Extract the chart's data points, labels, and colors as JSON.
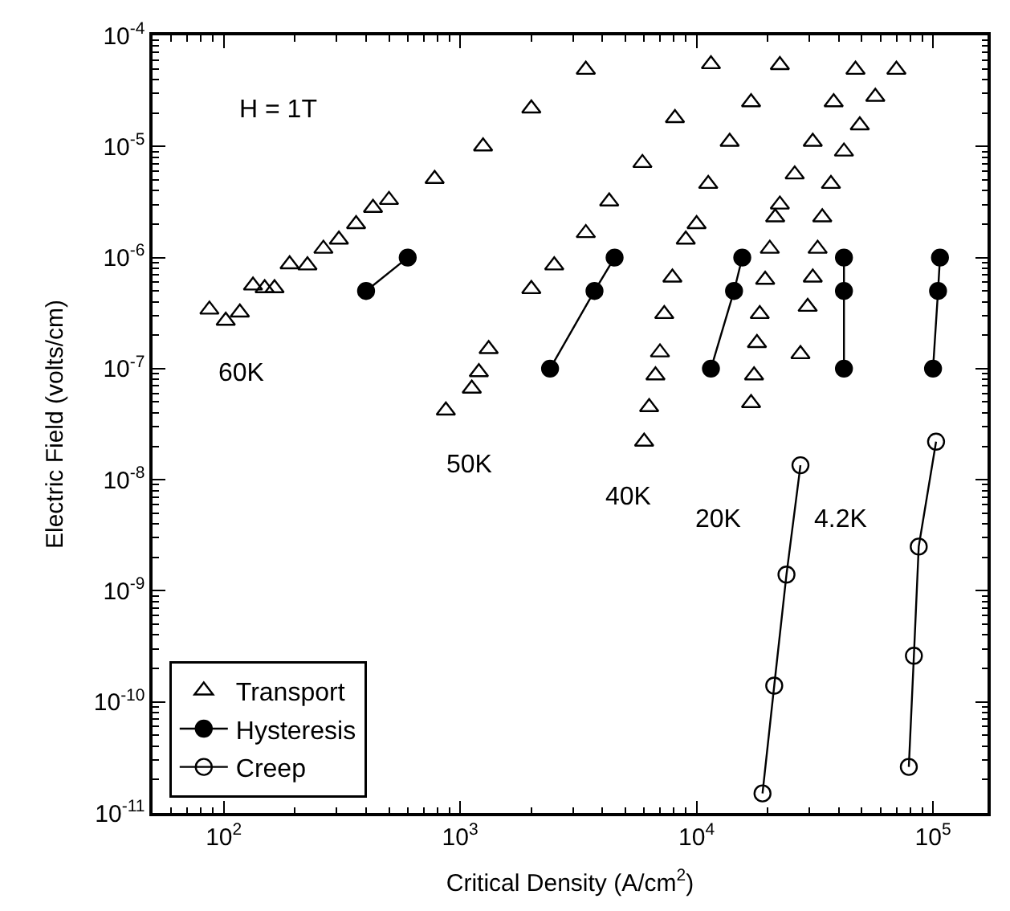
{
  "chart_data": {
    "type": "scatter",
    "xlabel": "Critical Density (A/cm$^{2}$)",
    "ylabel": "Electric Field (volts/cm)",
    "log": "xy",
    "legend": "bottom left",
    "xlim": [
      50,
      170000
    ],
    "ylim": [
      1e-11,
      0.0001
    ],
    "xticks": [
      {
        "value": 100,
        "label": "10$^{2}$"
      },
      {
        "value": 1000,
        "label": "10$^{3}$"
      },
      {
        "value": 10000,
        "label": "10$^{4}$"
      },
      {
        "value": 100000,
        "label": "10$^{5}$"
      }
    ],
    "yticks": [
      {
        "value": 1e-11,
        "label": "10$^{-11}$"
      },
      {
        "value": 1e-10,
        "label": "10$^{-10}$"
      },
      {
        "value": 1e-09,
        "label": "10$^{-9}$"
      },
      {
        "value": 1e-08,
        "label": "10$^{-8}$"
      },
      {
        "value": 1e-07,
        "label": "10$^{-7}$"
      },
      {
        "value": 1e-06,
        "label": "10$^{-6}$"
      },
      {
        "value": 1e-05,
        "label": "10$^{-5}$"
      },
      {
        "value": 0.0001,
        "label": "10$^{-4}$"
      }
    ],
    "series": [
      {
        "name": "Transport",
        "marker": "triangle",
        "color": "#000000",
        "x": [
          87,
          102,
          117,
          133,
          149,
          164,
          190,
          226,
          264,
          307,
          363,
          428,
          500,
          780,
          1250,
          2000,
          3400,
          870,
          1120,
          1200,
          1320,
          2000,
          2500,
          3400,
          4270,
          5900,
          8100,
          11500,
          6000,
          6300,
          6700,
          7000,
          7300,
          7900,
          9000,
          10000,
          11200,
          13800,
          17000,
          22500,
          17000,
          17500,
          18000,
          18500,
          19500,
          20400,
          21500,
          22500,
          26000,
          31000,
          38000,
          47000,
          27500,
          29500,
          31000,
          32500,
          34000,
          37000,
          42000,
          49000,
          57000,
          70000
        ],
        "values": [
          3.4e-07,
          2.7e-07,
          3.2e-07,
          5.6e-07,
          5.3e-07,
          5.3e-07,
          8.7e-07,
          8.5e-07,
          1.2e-06,
          1.45e-06,
          2e-06,
          2.8e-06,
          3.3e-06,
          5.1e-06,
          1e-05,
          2.2e-05,
          4.9e-05,
          4.2e-08,
          6.6e-08,
          9.3e-08,
          1.5e-07,
          5.2e-07,
          8.5e-07,
          1.66e-06,
          3.2e-06,
          7.1e-06,
          1.8e-05,
          5.5e-05,
          2.2e-08,
          4.5e-08,
          8.7e-08,
          1.4e-07,
          3.1e-07,
          6.6e-07,
          1.45e-06,
          2e-06,
          4.6e-06,
          1.1e-05,
          2.5e-05,
          5.4e-05,
          4.9e-08,
          8.7e-08,
          1.7e-07,
          3.1e-07,
          6.3e-07,
          1.2e-06,
          2.3e-06,
          3e-06,
          5.6e-06,
          1.1e-05,
          2.5e-05,
          4.9e-05,
          1.35e-07,
          3.6e-07,
          6.6e-07,
          1.2e-06,
          2.3e-06,
          4.6e-06,
          9e-06,
          1.55e-05,
          2.8e-05,
          4.9e-05
        ]
      },
      {
        "name": "Hysteresis",
        "type": "line",
        "marker": "circle",
        "color": "#000000",
        "x": [
          400,
          600,
          null,
          2400,
          3700,
          4500,
          null,
          11500,
          14400,
          15600,
          null,
          42000,
          42000,
          42000,
          null,
          100000,
          105000,
          107000
        ],
        "values": [
          5e-07,
          1e-06,
          null,
          1e-07,
          5e-07,
          1e-06,
          null,
          1e-07,
          5e-07,
          1e-06,
          null,
          1e-07,
          5e-07,
          1e-06,
          null,
          1e-07,
          5e-07,
          1e-06
        ]
      },
      {
        "name": "Creep",
        "type": "line",
        "marker": "circle-open",
        "color": "#000000",
        "x": [
          19000,
          21300,
          24000,
          27500,
          null,
          79000,
          83000,
          87000,
          103000
        ],
        "values": [
          1.5e-11,
          1.4e-10,
          1.4e-09,
          1.35e-08,
          null,
          2.6e-11,
          2.6e-10,
          2.5e-09,
          2.2e-08
        ]
      }
    ],
    "annotations": [
      "H = 1T",
      "60K",
      "50K",
      "40K",
      "20K",
      "4.2K"
    ]
  }
}
